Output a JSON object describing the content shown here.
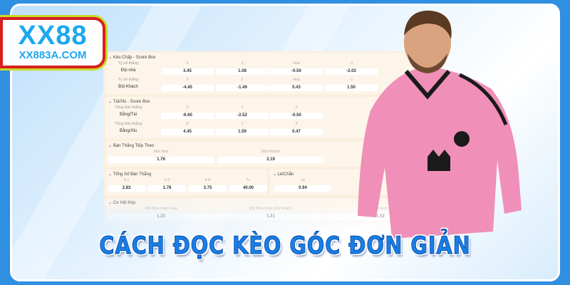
{
  "brand": {
    "logo_text": "XX88",
    "domain": "XX883A.COM"
  },
  "title": "CÁCH ĐỌC KÈO GÓC ĐƠN GIẢN",
  "colors": {
    "brand_blue": "#1ea7ee",
    "logo_border_red": "#d6201e",
    "title_blue": "#1a7ee6",
    "panel_bg": "#fbeedd",
    "jersey_pink": "#f08fb8"
  },
  "sections": {
    "handicap": {
      "title": "Kèo Chấp - Score Box",
      "rows": [
        {
          "header_label": "Tỷ số thắng",
          "headers": [
            "2",
            "1",
            "Hòa",
            "-1"
          ],
          "label": "Đội nhà",
          "values": [
            "3.45",
            "1.08",
            "-0.50",
            "-2.02"
          ]
        },
        {
          "header_label": "Tỷ số thắng",
          "headers": [
            "2",
            "1",
            "Hòa",
            "-1"
          ],
          "label": "Đội Khách",
          "values": [
            "-4.45",
            "-1.49",
            "0.43",
            "1.50"
          ]
        }
      ]
    },
    "overunder": {
      "title": "Tài/Xỉu - Score Box",
      "rows": [
        {
          "header_label": "Tổng bàn thắng",
          "headers": [
            "0",
            "1",
            "2"
          ],
          "label": "Bằng/Tài",
          "values": [
            "-6.60",
            "-2.52",
            "-0.50"
          ]
        },
        {
          "header_label": "Tổng bàn thắng",
          "headers": [
            "0",
            "1",
            "2"
          ],
          "label": "Bằng/Xỉu",
          "values": [
            "4.45",
            "1.59",
            "0.47"
          ]
        }
      ]
    },
    "next_goal": {
      "title": "Bàn Thắng Tiếp Theo",
      "headers": [
        "Đội Nhà",
        "Đội Khách"
      ],
      "values": [
        "1.76",
        "2.19"
      ]
    },
    "total_goals": {
      "title": "Tổng Số Bàn Thắng",
      "headers": [
        "0-1",
        "2-3",
        "4-6",
        "7+"
      ],
      "values": [
        "2.83",
        "1.78",
        "3.75",
        "40.00"
      ]
    },
    "odd_even": {
      "title": "Lẻ/Chẵn",
      "headers": [
        "Lẻ"
      ],
      "values": [
        "0.94"
      ]
    },
    "double_chance": {
      "title": "Cơ Hội Kép",
      "headers": [
        "Đội Nhà hoặc Hòa",
        "Đội Nhà hoặc Đội Khách",
        "Đội Khách h"
      ],
      "values": [
        "1.23",
        "1.21",
        "1.52"
      ]
    }
  }
}
